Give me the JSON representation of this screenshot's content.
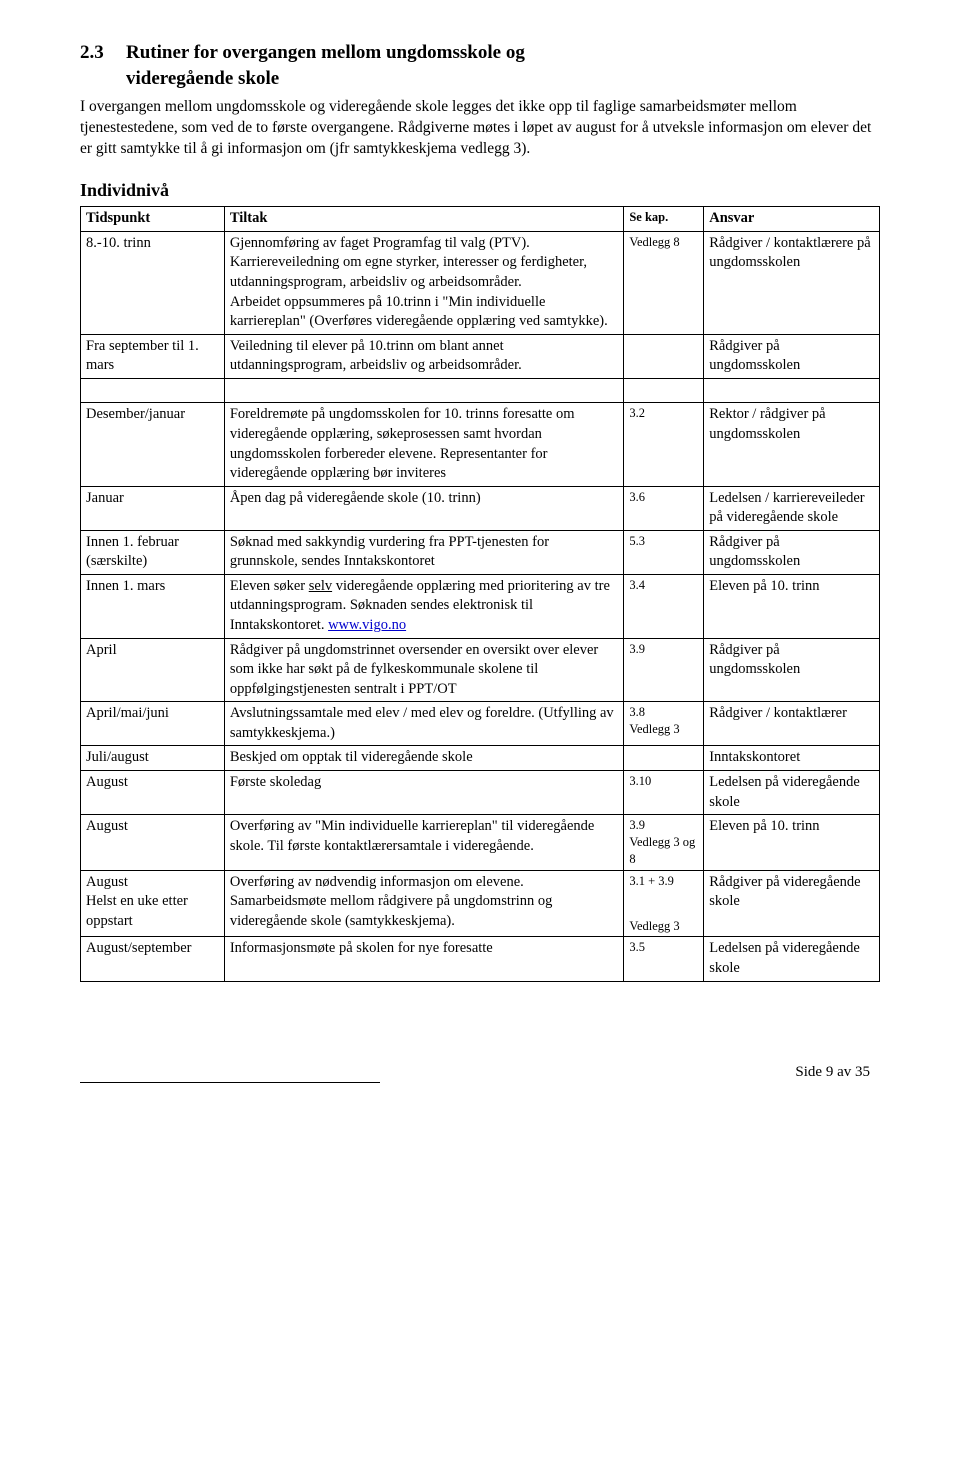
{
  "section": {
    "number": "2.3",
    "title_l1": "Rutiner for overgangen mellom ungdomsskole og",
    "title_l2": "videregående skole"
  },
  "intro": "I overgangen mellom ungdomsskole og videregående skole legges det ikke opp til faglige samarbeidsmøter mellom tjenestestedene, som ved de to første overgangene. Rådgiverne møtes i løpet av august for å utveksle informasjon om elever det er gitt samtykke til å gi informasjon om (jfr samtykkeskjema vedlegg 3).",
  "subheading": "Individnivå",
  "table": {
    "headers": {
      "tidspunkt": "Tidspunkt",
      "tiltak": "Tiltak",
      "sekap": "Se kap.",
      "ansvar": "Ansvar"
    },
    "rows": [
      {
        "tidspunkt": "8.-10. trinn",
        "tiltak": "Gjennomføring av faget Programfag til valg (PTV).\nKarriereveiledning om egne styrker, interesser og ferdigheter, utdanningsprogram, arbeidsliv og arbeidsområder.\nArbeidet oppsummeres på 10.trinn i \"Min individuelle karriereplan\" (Overføres videregående opplæring ved samtykke).",
        "sekap": "Vedlegg 8",
        "ansvar": "Rådgiver / kontaktlærere på ungdomsskolen"
      },
      {
        "tidspunkt": "Fra september til 1. mars",
        "tiltak": "Veiledning til elever på 10.trinn om blant annet utdanningsprogram, arbeidsliv og arbeidsområder.",
        "sekap": "",
        "ansvar": "Rådgiver på ungdomsskolen"
      },
      {
        "spacer": true
      },
      {
        "tidspunkt": "Desember/januar",
        "tiltak": "Foreldremøte på ungdomsskolen for 10. trinns foresatte om videregående opplæring, søkeprosessen samt hvordan ungdomsskolen forbereder elevene. Representanter for videregående opplæring bør inviteres",
        "sekap": "3.2",
        "ansvar": "Rektor / rådgiver på ungdomsskolen"
      },
      {
        "tidspunkt": "Januar",
        "tiltak": "Åpen dag på videregående skole (10. trinn)",
        "sekap": "3.6",
        "ansvar": "Ledelsen / karriereveileder på videregående skole"
      },
      {
        "tidspunkt": "Innen 1. februar (særskilte)",
        "tiltak": "Søknad med sakkyndig vurdering fra PPT-tjenesten for grunnskole, sendes Inntakskontoret",
        "sekap": "5.3",
        "ansvar": "Rådgiver på ungdomsskolen"
      },
      {
        "tidspunkt": "Innen 1. mars",
        "tiltak_pre": "Eleven søker ",
        "tiltak_underline": "selv",
        "tiltak_mid": " videregående opplæring med prioritering av tre utdanningsprogram. Søknaden sendes elektronisk til Inntakskontoret. ",
        "tiltak_link": "www.vigo.no",
        "sekap": "3.4",
        "ansvar": "Eleven på 10. trinn"
      },
      {
        "tidspunkt": "April",
        "tiltak": "Rådgiver på ungdomstrinnet oversender en oversikt over elever som ikke har søkt på de fylkeskommunale skolene til oppfølgingstjenesten sentralt i PPT/OT",
        "sekap": "3.9",
        "ansvar": "Rådgiver på ungdomsskolen"
      },
      {
        "tidspunkt": "April/mai/juni",
        "tiltak": "Avslutningssamtale med elev / med elev og foreldre. (Utfylling av samtykkeskjema.)",
        "sekap": "3.8",
        "sekap2": "Vedlegg 3",
        "ansvar": "Rådgiver / kontaktlærer"
      },
      {
        "tidspunkt": "Juli/august",
        "tiltak": "Beskjed om opptak til videregående skole",
        "sekap": "",
        "ansvar": "Inntakskontoret"
      },
      {
        "tidspunkt": "August",
        "tiltak": "Første skoledag",
        "sekap": "3.10",
        "ansvar": "Ledelsen på videregående skole"
      },
      {
        "tidspunkt": "August",
        "tiltak": "Overføring av \"Min individuelle karriereplan\" til videregående skole. Til første kontaktlærersamtale i videregående.",
        "sekap": "3.9",
        "sekap2": "Vedlegg 3 og 8",
        "ansvar": "Eleven på 10. trinn"
      },
      {
        "tidspunkt": "August\nHelst en uke etter oppstart",
        "tiltak": "Overføring av nødvendig informasjon om elevene. Samarbeidsmøte mellom rådgivere på ungdomstrinn og videregående skole (samtykkeskjema).",
        "sekap": "3.1 + 3.9",
        "sekap2": "Vedlegg 3",
        "sekap2_gap": true,
        "ansvar": "Rådgiver på videregående skole"
      },
      {
        "tidspunkt": "August/september",
        "tiltak": "Informasjonsmøte på skolen for nye foresatte",
        "sekap": "3.5",
        "ansvar": "Ledelsen på videregående skole"
      }
    ]
  },
  "footer": {
    "page": "Side 9 av 35"
  }
}
